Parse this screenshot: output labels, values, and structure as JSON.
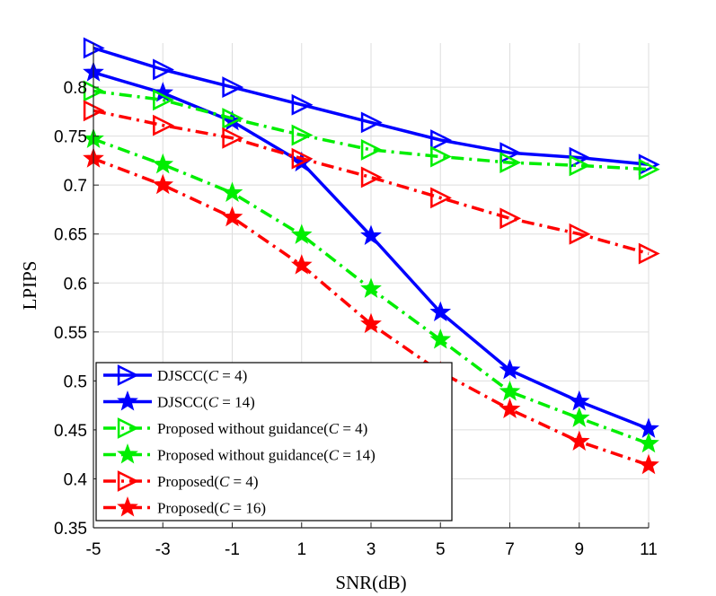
{
  "chart_data": {
    "type": "line",
    "title": "",
    "xlabel": "SNR(dB)",
    "ylabel": "LPIPS",
    "x": [
      -5,
      -3,
      -1,
      1,
      3,
      5,
      7,
      9,
      11
    ],
    "x_tick_labels": [
      "-5",
      "-3",
      "-1",
      "1",
      "3",
      "5",
      "7",
      "9",
      "11"
    ],
    "y_tick_labels": [
      "0.35",
      "0.4",
      "0.45",
      "0.5",
      "0.55",
      "0.6",
      "0.65",
      "0.7",
      "0.75",
      "0.8"
    ],
    "xlim": [
      -5,
      11
    ],
    "ylim": [
      0.35,
      0.845
    ],
    "grid": true,
    "legend_position": "bottom-left",
    "series": [
      {
        "name": "DJSCC(C = 4)",
        "legend_prefix": "DJSCC(",
        "legend_var": "C",
        "legend_value": " = 4)",
        "color": "#0000ff",
        "dash": "solid",
        "marker": "triangle-right",
        "values": [
          0.84,
          0.818,
          0.8,
          0.782,
          0.764,
          0.746,
          0.733,
          0.728,
          0.721
        ]
      },
      {
        "name": "DJSCC(C = 14)",
        "legend_prefix": "DJSCC(",
        "legend_var": "C",
        "legend_value": " = 14)",
        "color": "#0000ff",
        "dash": "solid",
        "marker": "star",
        "values": [
          0.815,
          0.794,
          0.765,
          0.723,
          0.648,
          0.57,
          0.511,
          0.479,
          0.451
        ]
      },
      {
        "name": "Proposed without guidance(C = 4)",
        "legend_prefix": "Proposed without guidance(",
        "legend_var": "C",
        "legend_value": " = 4)",
        "color": "#00ee00",
        "dash": "dashdot",
        "marker": "triangle-right",
        "values": [
          0.796,
          0.787,
          0.768,
          0.751,
          0.736,
          0.729,
          0.723,
          0.72,
          0.716
        ]
      },
      {
        "name": "Proposed without guidance(C = 14)",
        "legend_prefix": "Proposed without guidance(",
        "legend_var": "C",
        "legend_value": " = 14)",
        "color": "#00ee00",
        "dash": "dashdot",
        "marker": "star",
        "values": [
          0.747,
          0.721,
          0.692,
          0.649,
          0.594,
          0.542,
          0.489,
          0.462,
          0.436
        ]
      },
      {
        "name": "Proposed(C = 4)",
        "legend_prefix": "Proposed(",
        "legend_var": "C",
        "legend_value": " = 4)",
        "color": "#ff0000",
        "dash": "dashdot",
        "marker": "triangle-right",
        "values": [
          0.776,
          0.761,
          0.748,
          0.727,
          0.708,
          0.687,
          0.666,
          0.65,
          0.63
        ]
      },
      {
        "name": "Proposed(C = 16)",
        "legend_prefix": "Proposed(",
        "legend_var": "C",
        "legend_value": " = 16)",
        "color": "#ff0000",
        "dash": "dashdot",
        "marker": "star",
        "values": [
          0.727,
          0.7,
          0.667,
          0.618,
          0.558,
          0.509,
          0.471,
          0.438,
          0.414
        ]
      }
    ]
  }
}
